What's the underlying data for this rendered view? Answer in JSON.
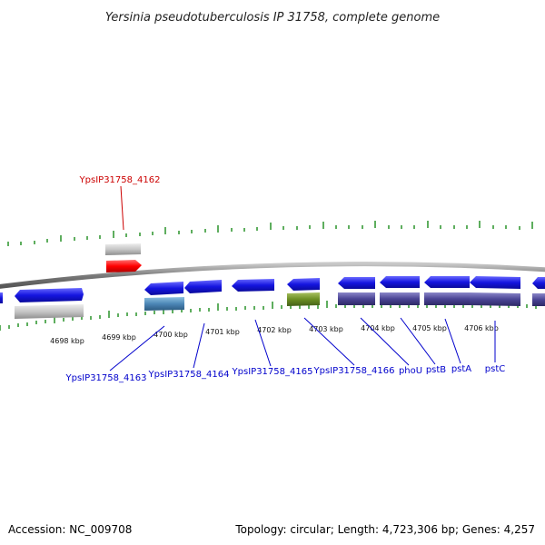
{
  "title": "Yersinia pseudotuberculosis IP 31758, complete genome",
  "footer": {
    "accession": "Accession: NC_009708",
    "summary": "Topology: circular; Length: 4,723,306 bp; Genes: 4,257"
  },
  "colors": {
    "forward_gene": "#1a1ae6",
    "reverse_gene": "#45408f",
    "rna": "#2e8b8b",
    "highlight": "#ff0000",
    "pseudo": "#c8c8c8",
    "misc": "#4c8ab8",
    "other": "#6b8e23",
    "tick": "#1a8c1a",
    "backbone": "#8a8a8a",
    "label_blue": "#0000cc",
    "label_red": "#cc0000"
  },
  "scale_labels": [
    "4698 kbp",
    "4699 kbp",
    "4700 kbp",
    "4701 kbp",
    "4702 kbp",
    "4703 kbp",
    "4704 kbp",
    "4705 kbp",
    "4706 kbp"
  ],
  "gene_labels": {
    "highlight": "YpsIP31758_4162",
    "l4163": "YpsIP31758_4163",
    "l4164": "YpsIP31758_4164",
    "l4165": "YpsIP31758_4165",
    "l4166": "YpsIP31758_4166",
    "phoU": "phoU",
    "pstB": "pstB",
    "pstA": "pstA",
    "pstC": "pstC"
  }
}
